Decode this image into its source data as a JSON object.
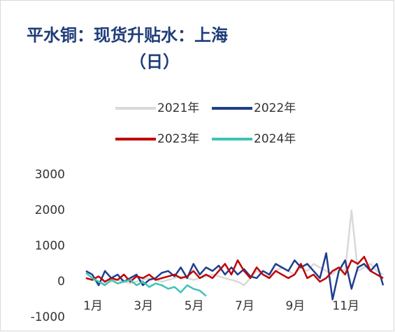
{
  "chart_data": {
    "type": "line",
    "title": "平水铜：现货升贴水：上海",
    "subtitle": "（日）",
    "categories": [
      "1月",
      null,
      null,
      null,
      null,
      null,
      null,
      null,
      "3月",
      null,
      null,
      null,
      null,
      null,
      null,
      null,
      "5月",
      null,
      null,
      null,
      null,
      null,
      null,
      null,
      "7月",
      null,
      null,
      null,
      null,
      null,
      null,
      null,
      "9月",
      null,
      null,
      null,
      null,
      null,
      null,
      null,
      "11月",
      null,
      null,
      null,
      null,
      null,
      null,
      null
    ],
    "series": [
      {
        "name": "2021年",
        "color": "#d9d9d9",
        "values": [
          100,
          50,
          0,
          -50,
          0,
          50,
          0,
          -50,
          0,
          50,
          100,
          50,
          0,
          50,
          100,
          150,
          100,
          50,
          100,
          150,
          200,
          150,
          100,
          50,
          0,
          -100,
          100,
          300,
          200,
          150,
          300,
          400,
          300,
          200,
          400,
          300,
          500,
          400,
          300,
          200,
          400,
          300,
          2000,
          300,
          400,
          500,
          300,
          200
        ]
      },
      {
        "name": "2022年",
        "color": "#1f3d8f",
        "values": [
          300,
          200,
          -100,
          300,
          100,
          200,
          0,
          100,
          200,
          -100,
          50,
          100,
          250,
          300,
          150,
          400,
          100,
          500,
          200,
          400,
          300,
          450,
          200,
          400,
          200,
          350,
          150,
          100,
          300,
          200,
          500,
          400,
          300,
          600,
          400,
          500,
          300,
          100,
          800,
          -500,
          300,
          600,
          -200,
          400,
          500,
          300,
          500,
          -100
        ]
      },
      {
        "name": "2023年",
        "color": "#c00000",
        "values": [
          100,
          50,
          150,
          0,
          100,
          50,
          200,
          0,
          150,
          100,
          200,
          50,
          100,
          150,
          200,
          100,
          150,
          300,
          100,
          200,
          100,
          300,
          500,
          200,
          600,
          300,
          100,
          400,
          200,
          100,
          300,
          200,
          100,
          200,
          500,
          100,
          200,
          0,
          100,
          300,
          400,
          200,
          600,
          500,
          700,
          300,
          200,
          100
        ]
      },
      {
        "name": "2024年",
        "color": "#3cc4b4",
        "values": [
          250,
          100,
          0,
          -100,
          50,
          -50,
          0,
          50,
          -100,
          0,
          -150,
          -50,
          -100,
          -200,
          -150,
          -300,
          -100,
          -200,
          -250,
          -400,
          null,
          null,
          null,
          null,
          null,
          null,
          null,
          null,
          null,
          null,
          null,
          null,
          null,
          null,
          null,
          null,
          null,
          null,
          null,
          null,
          null,
          null,
          null,
          null,
          null,
          null,
          null,
          null
        ]
      }
    ],
    "ylim": [
      -1000,
      3000
    ],
    "yticks": [
      -1000,
      0,
      1000,
      2000,
      3000
    ],
    "grid": false
  }
}
